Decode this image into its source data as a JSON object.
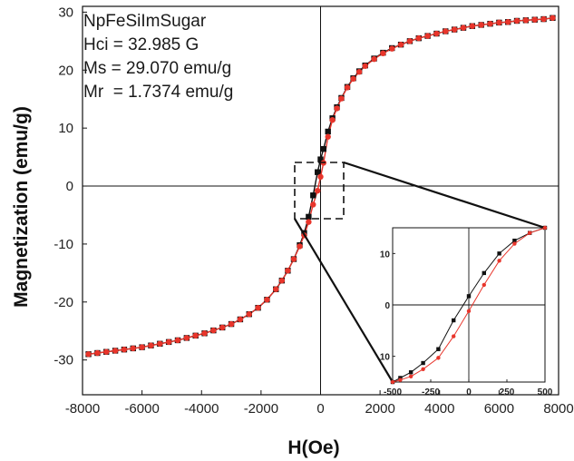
{
  "chart_data": [
    {
      "type": "scatter",
      "title": "",
      "xlabel": "H(Oe)",
      "ylabel": "Magnetization (emu/g)",
      "xlim": [
        -8000,
        8000
      ],
      "ylim": [
        -36,
        31
      ],
      "xticks": [
        "-8000",
        "-6000",
        "-4000",
        "-2000",
        "0",
        "2000",
        "4000",
        "6000",
        "8000"
      ],
      "yticks": [
        "-30",
        "-20",
        "-10",
        "0",
        "10",
        "20",
        "30"
      ],
      "annotations": [
        "NpFeSiImSugar",
        "Hci = 32.985 G",
        "Ms = 29.070 emu/g",
        "Mr  = 1.7374 emu/g"
      ],
      "grid": false,
      "series": [
        {
          "color": "#111111",
          "marker": "square",
          "x": [
            -7800,
            -7500,
            -7200,
            -6900,
            -6600,
            -6300,
            -6000,
            -5700,
            -5400,
            -5100,
            -4800,
            -4500,
            -4200,
            -3900,
            -3600,
            -3300,
            -3000,
            -2700,
            -2400,
            -2100,
            -1800,
            -1500,
            -1300,
            -1100,
            -900,
            -700,
            -550,
            -400,
            -250,
            -100,
            0,
            100,
            250,
            400,
            550,
            700,
            900,
            1100,
            1300,
            1500,
            1800,
            2100,
            2400,
            2700,
            3000,
            3300,
            3600,
            3900,
            4200,
            4500,
            4800,
            5100,
            5400,
            5700,
            6000,
            6300,
            6600,
            6900,
            7200,
            7500,
            7800
          ],
          "y": [
            -29.0,
            -28.8,
            -28.6,
            -28.4,
            -28.2,
            -28.0,
            -27.8,
            -27.5,
            -27.2,
            -26.9,
            -26.6,
            -26.2,
            -25.8,
            -25.4,
            -24.9,
            -24.4,
            -23.8,
            -23.0,
            -22.1,
            -21.0,
            -19.6,
            -17.8,
            -16.3,
            -14.6,
            -12.6,
            -10.2,
            -8.1,
            -5.3,
            -1.6,
            2.4,
            4.6,
            6.4,
            9.4,
            11.7,
            13.6,
            15.2,
            17.1,
            18.6,
            19.8,
            20.8,
            22.0,
            23.0,
            23.8,
            24.4,
            25.0,
            25.5,
            25.9,
            26.3,
            26.7,
            27.0,
            27.3,
            27.6,
            27.8,
            28.0,
            28.2,
            28.3,
            28.5,
            28.6,
            28.7,
            28.8,
            29.0
          ]
        },
        {
          "color": "#e8352b",
          "marker": "circle",
          "x": [
            -7800,
            -7500,
            -7200,
            -6900,
            -6600,
            -6300,
            -6000,
            -5700,
            -5400,
            -5100,
            -4800,
            -4500,
            -4200,
            -3900,
            -3600,
            -3300,
            -3000,
            -2700,
            -2400,
            -2100,
            -1800,
            -1500,
            -1300,
            -1100,
            -900,
            -700,
            -550,
            -400,
            -250,
            -100,
            0,
            100,
            250,
            400,
            550,
            700,
            900,
            1100,
            1300,
            1500,
            1800,
            2100,
            2400,
            2700,
            3000,
            3300,
            3600,
            3900,
            4200,
            4500,
            4800,
            5100,
            5400,
            5700,
            6000,
            6300,
            6600,
            6900,
            7200,
            7500,
            7800
          ],
          "y": [
            -29.0,
            -28.8,
            -28.6,
            -28.4,
            -28.2,
            -28.0,
            -27.8,
            -27.5,
            -27.2,
            -26.9,
            -26.6,
            -26.2,
            -25.8,
            -25.4,
            -24.9,
            -24.4,
            -23.8,
            -23.0,
            -22.1,
            -21.0,
            -19.6,
            -17.8,
            -16.3,
            -14.6,
            -12.6,
            -10.4,
            -8.5,
            -6.2,
            -3.2,
            -0.8,
            1.6,
            4.0,
            8.5,
            11.4,
            13.4,
            15.1,
            17.0,
            18.5,
            19.7,
            20.7,
            21.9,
            22.9,
            23.7,
            24.4,
            25.0,
            25.5,
            25.9,
            26.3,
            26.7,
            27.0,
            27.3,
            27.6,
            27.8,
            28.0,
            28.2,
            28.3,
            28.5,
            28.6,
            28.7,
            28.8,
            29.0
          ]
        }
      ]
    },
    {
      "type": "line",
      "title": "",
      "xlabel": "",
      "ylabel": "",
      "xlim": [
        -500,
        500
      ],
      "ylim": [
        -15,
        15
      ],
      "xticks": [
        "-500",
        "-250",
        "0",
        "250",
        "500"
      ],
      "yticks": [
        "10",
        "0",
        "10"
      ],
      "grid": false,
      "series": [
        {
          "color": "#111111",
          "marker": "square",
          "x": [
            -500,
            -450,
            -380,
            -300,
            -200,
            -100,
            0,
            100,
            200,
            300,
            400,
            500
          ],
          "y": [
            -15.0,
            -14.2,
            -13.1,
            -11.3,
            -8.6,
            -3.0,
            1.7,
            6.2,
            10.0,
            12.5,
            14.0,
            15.0
          ]
        },
        {
          "color": "#e8352b",
          "marker": "circle",
          "x": [
            -500,
            -450,
            -380,
            -300,
            -200,
            -100,
            0,
            100,
            200,
            300,
            400,
            500
          ],
          "y": [
            -15.0,
            -14.6,
            -13.9,
            -12.5,
            -10.3,
            -6.1,
            -1.2,
            3.9,
            8.6,
            11.9,
            14.0,
            15.0
          ]
        }
      ]
    }
  ]
}
